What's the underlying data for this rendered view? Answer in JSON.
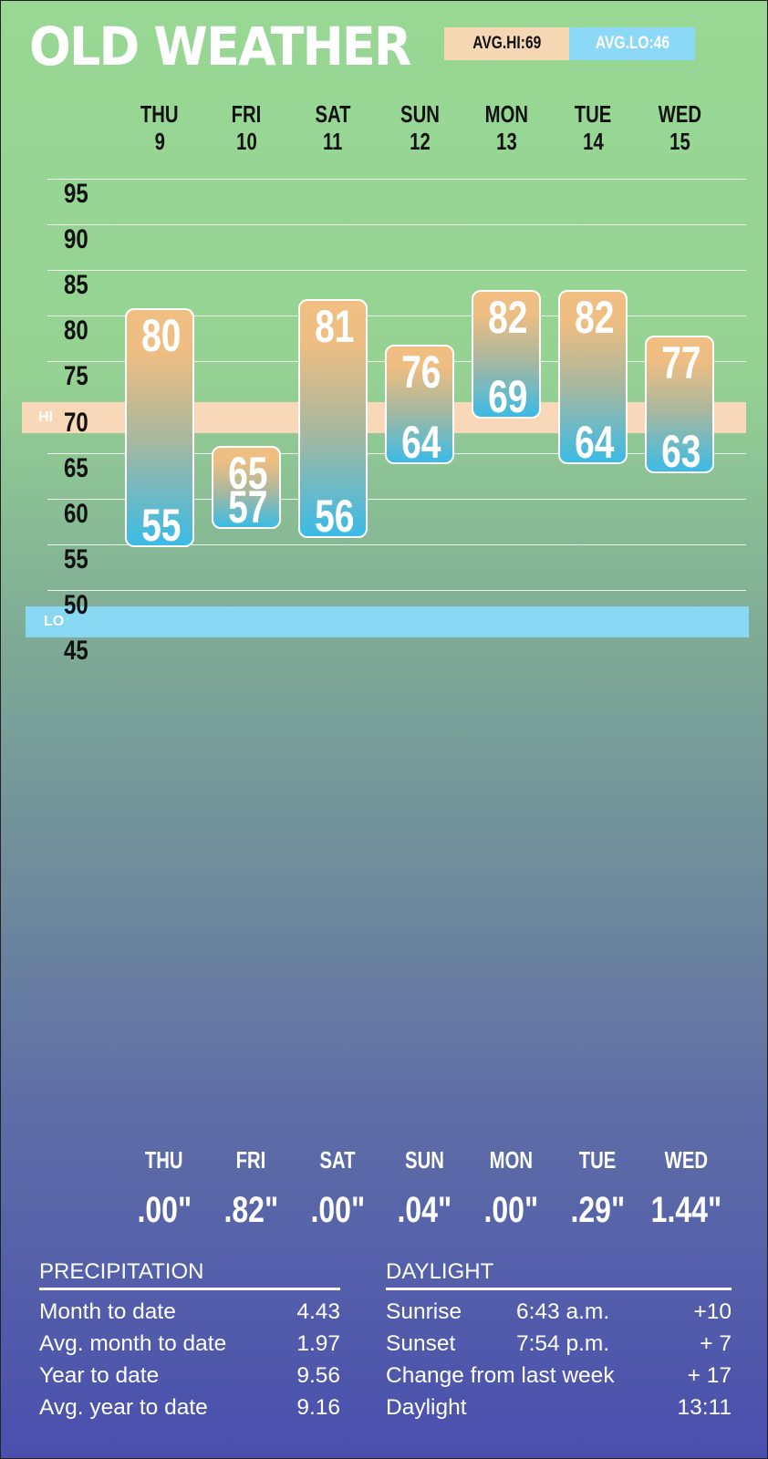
{
  "header": {
    "title": "OLD WEATHER",
    "avg_hi_label": "AVG.HI:69",
    "avg_lo_label": "AVG.LO:46"
  },
  "chart_data": {
    "type": "bar",
    "categories": [
      "THU",
      "FRI",
      "SAT",
      "SUN",
      "MON",
      "TUE",
      "WED"
    ],
    "dates": [
      "9",
      "10",
      "11",
      "12",
      "13",
      "14",
      "15"
    ],
    "highs": [
      80,
      65,
      81,
      76,
      82,
      82,
      77
    ],
    "lows": [
      55,
      57,
      56,
      64,
      69,
      64,
      63
    ],
    "ylim": [
      45,
      95
    ],
    "yticks": [
      95,
      90,
      85,
      80,
      75,
      70,
      65,
      60,
      55,
      50,
      45
    ],
    "grid": true,
    "avg_hi": 69,
    "avg_lo": 46,
    "hi_band_label": "HI",
    "lo_band_label": "LO"
  },
  "precip_days": {
    "days": [
      "THU",
      "FRI",
      "SAT",
      "SUN",
      "MON",
      "TUE",
      "WED"
    ],
    "values": [
      ".00\"",
      ".82\"",
      ".00\"",
      ".04\"",
      ".00\"",
      ".29\"",
      "1.44\""
    ]
  },
  "precipitation": {
    "title": "PRECIPITATION",
    "rows": [
      {
        "label": "Month to date",
        "value": "4.43"
      },
      {
        "label": "Avg. month to date",
        "value": "1.97"
      },
      {
        "label": "Year to date",
        "value": "9.56"
      },
      {
        "label": "Avg. year to date",
        "value": "9.16"
      }
    ]
  },
  "daylight": {
    "title": "DAYLIGHT",
    "rows": [
      {
        "label": "Sunrise",
        "time": "6:43 a.m.",
        "change": "+10"
      },
      {
        "label": "Sunset",
        "time": "7:54 p.m.",
        "change": "+ 7"
      },
      {
        "label": "Change from last week",
        "time": "",
        "change": "+ 17"
      },
      {
        "label": "Daylight",
        "time": "",
        "change": "13:11"
      }
    ]
  },
  "colors": {
    "hi_band": "#f8d8b8",
    "lo_band": "#88d8f4",
    "bar_top": "#f0bf82",
    "bar_bottom": "#3bbbe6"
  }
}
